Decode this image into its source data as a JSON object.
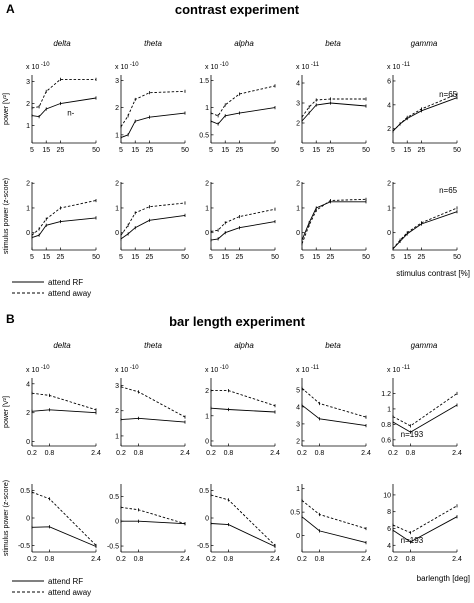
{
  "panels": [
    {
      "letter": "A",
      "title": "contrast experiment",
      "band_labels": [
        "delta",
        "theta",
        "alpha",
        "beta",
        "gamma"
      ],
      "legend": {
        "solid": "attend RF",
        "dashed": "attend away"
      },
      "xlabel": "stimulus contrast [%]"
    },
    {
      "letter": "B",
      "title": "bar length experiment",
      "band_labels": [
        "delta",
        "theta",
        "alpha",
        "beta",
        "gamma"
      ],
      "legend": {
        "solid": "attend RF",
        "dashed": "attend away"
      },
      "xlabel": "barlength [deg]"
    }
  ],
  "chart_data": [
    {
      "type": "line",
      "panel": "A",
      "row": "power",
      "band": "delta",
      "ylabel": "power [V²]",
      "exponent_label": "x 10",
      "exponent": "-10",
      "x": [
        5,
        10,
        15,
        25,
        50
      ],
      "xticks": [
        "5",
        "15",
        "25",
        "50"
      ],
      "xlim": [
        5,
        50
      ],
      "yticks": [
        "1",
        "2",
        "3"
      ],
      "ylim": [
        0.2,
        3.3
      ],
      "series": [
        {
          "name": "attend RF",
          "style": "solid",
          "values": [
            1.45,
            1.4,
            1.75,
            2.0,
            2.25
          ]
        },
        {
          "name": "attend away",
          "style": "dashed",
          "values": [
            1.8,
            1.85,
            2.55,
            3.1,
            3.1
          ]
        }
      ],
      "annotation": "n-"
    },
    {
      "type": "line",
      "panel": "A",
      "row": "power",
      "band": "theta",
      "exponent_label": "x 10",
      "exponent": "-10",
      "x": [
        5,
        10,
        15,
        25,
        50
      ],
      "xticks": [
        "5",
        "15",
        "25",
        "50"
      ],
      "xlim": [
        5,
        50
      ],
      "yticks": [
        "1",
        "2",
        "3"
      ],
      "ylim": [
        0.7,
        3.2
      ],
      "series": [
        {
          "name": "attend RF",
          "style": "solid",
          "values": [
            0.9,
            1.0,
            1.5,
            1.65,
            1.8
          ]
        },
        {
          "name": "attend away",
          "style": "dashed",
          "values": [
            1.3,
            1.7,
            2.3,
            2.55,
            2.6
          ]
        }
      ]
    },
    {
      "type": "line",
      "panel": "A",
      "row": "power",
      "band": "alpha",
      "exponent_label": "x 10",
      "exponent": "-10",
      "x": [
        5,
        10,
        15,
        25,
        50
      ],
      "xticks": [
        "5",
        "15",
        "25",
        "50"
      ],
      "xlim": [
        5,
        50
      ],
      "yticks": [
        "0.5",
        "1",
        "1.5"
      ],
      "ylim": [
        0.35,
        1.6
      ],
      "series": [
        {
          "name": "attend RF",
          "style": "solid",
          "values": [
            0.75,
            0.7,
            0.85,
            0.9,
            1.0
          ]
        },
        {
          "name": "attend away",
          "style": "dashed",
          "values": [
            0.9,
            0.85,
            1.05,
            1.25,
            1.4
          ]
        }
      ]
    },
    {
      "type": "line",
      "panel": "A",
      "row": "power",
      "band": "beta",
      "exponent_label": "x 10",
      "exponent": "-11",
      "x": [
        5,
        10,
        15,
        25,
        50
      ],
      "xticks": [
        "5",
        "15",
        "25",
        "50"
      ],
      "xlim": [
        5,
        50
      ],
      "yticks": [
        "2",
        "3",
        "4"
      ],
      "ylim": [
        1.0,
        4.4
      ],
      "series": [
        {
          "name": "attend RF",
          "style": "solid",
          "values": [
            2.1,
            2.5,
            2.9,
            3.0,
            2.85
          ]
        },
        {
          "name": "attend away",
          "style": "dashed",
          "values": [
            2.3,
            2.8,
            3.15,
            3.2,
            3.2
          ]
        }
      ]
    },
    {
      "type": "line",
      "panel": "A",
      "row": "power",
      "band": "gamma",
      "exponent_label": "x 10",
      "exponent": "-11",
      "x": [
        5,
        10,
        15,
        25,
        50
      ],
      "xticks": [
        "5",
        "15",
        "25",
        "50"
      ],
      "xlim": [
        5,
        50
      ],
      "yticks": [
        "2",
        "4",
        "6"
      ],
      "ylim": [
        0.8,
        6.5
      ],
      "series": [
        {
          "name": "attend RF",
          "style": "solid",
          "values": [
            1.8,
            2.4,
            2.85,
            3.5,
            4.6
          ]
        },
        {
          "name": "attend away",
          "style": "dashed",
          "values": [
            1.8,
            2.4,
            2.95,
            3.65,
            4.9
          ]
        }
      ],
      "annotation": "n=65"
    },
    {
      "type": "line",
      "panel": "A",
      "row": "stimulus",
      "band": "delta",
      "ylabel": "stimulus power (z-score)",
      "x": [
        5,
        10,
        15,
        25,
        50
      ],
      "xticks": [
        "5",
        "15",
        "25",
        "50"
      ],
      "xlim": [
        5,
        50
      ],
      "yticks": [
        "0",
        "1",
        "2"
      ],
      "ylim": [
        -0.7,
        2.05
      ],
      "series": [
        {
          "name": "attend RF",
          "style": "solid",
          "values": [
            -0.2,
            -0.1,
            0.3,
            0.45,
            0.6
          ]
        },
        {
          "name": "attend away",
          "style": "dashed",
          "values": [
            -0.1,
            0.15,
            0.55,
            1.0,
            1.3
          ]
        }
      ]
    },
    {
      "type": "line",
      "panel": "A",
      "row": "stimulus",
      "band": "theta",
      "x": [
        5,
        10,
        15,
        25,
        50
      ],
      "xticks": [
        "5",
        "15",
        "25",
        "50"
      ],
      "xlim": [
        5,
        50
      ],
      "yticks": [
        "0",
        "1",
        "2"
      ],
      "ylim": [
        -0.7,
        2.05
      ],
      "series": [
        {
          "name": "attend RF",
          "style": "solid",
          "values": [
            -0.25,
            -0.05,
            0.2,
            0.5,
            0.7
          ]
        },
        {
          "name": "attend away",
          "style": "dashed",
          "values": [
            -0.1,
            0.3,
            0.8,
            1.05,
            1.2
          ]
        }
      ]
    },
    {
      "type": "line",
      "panel": "A",
      "row": "stimulus",
      "band": "alpha",
      "x": [
        5,
        10,
        15,
        25,
        50
      ],
      "xticks": [
        "5",
        "15",
        "25",
        "50"
      ],
      "xlim": [
        5,
        50
      ],
      "yticks": [
        "0",
        "1",
        "2"
      ],
      "ylim": [
        -0.7,
        2.05
      ],
      "series": [
        {
          "name": "attend RF",
          "style": "solid",
          "values": [
            -0.3,
            -0.25,
            0.0,
            0.2,
            0.45
          ]
        },
        {
          "name": "attend away",
          "style": "dashed",
          "values": [
            0.05,
            0.1,
            0.4,
            0.65,
            0.95
          ]
        }
      ]
    },
    {
      "type": "line",
      "panel": "A",
      "row": "stimulus",
      "band": "beta",
      "x": [
        5,
        10,
        15,
        25,
        50
      ],
      "xticks": [
        "5",
        "15",
        "25",
        "50"
      ],
      "xlim": [
        5,
        50
      ],
      "yticks": [
        "0",
        "1",
        "2"
      ],
      "ylim": [
        -0.7,
        2.05
      ],
      "series": [
        {
          "name": "attend RF",
          "style": "solid",
          "values": [
            -0.3,
            0.4,
            1.0,
            1.25,
            1.25
          ]
        },
        {
          "name": "attend away",
          "style": "dashed",
          "values": [
            -0.45,
            0.3,
            0.9,
            1.3,
            1.35
          ]
        }
      ]
    },
    {
      "type": "line",
      "panel": "A",
      "row": "stimulus",
      "band": "gamma",
      "x": [
        5,
        10,
        15,
        25,
        50
      ],
      "xticks": [
        "5",
        "15",
        "25",
        "50"
      ],
      "xlim": [
        5,
        50
      ],
      "yticks": [
        "0",
        "1",
        "2"
      ],
      "ylim": [
        -0.7,
        2.05
      ],
      "series": [
        {
          "name": "attend RF",
          "style": "solid",
          "values": [
            -0.65,
            -0.35,
            -0.05,
            0.35,
            0.85
          ]
        },
        {
          "name": "attend away",
          "style": "dashed",
          "values": [
            -0.65,
            -0.3,
            0.0,
            0.4,
            1.0
          ]
        }
      ],
      "annotation": "n=65"
    },
    {
      "type": "line",
      "panel": "B",
      "row": "power",
      "band": "delta",
      "ylabel": "power [V²]",
      "exponent_label": "x 10",
      "exponent": "-10",
      "x": [
        0.2,
        0.8,
        2.4
      ],
      "xticks": [
        "0.2",
        "0.8",
        "2.4"
      ],
      "xlim": [
        0.2,
        2.4
      ],
      "yticks": [
        "0",
        "2",
        "4"
      ],
      "ylim": [
        -0.3,
        4.4
      ],
      "series": [
        {
          "name": "attend RF",
          "style": "solid",
          "values": [
            2.1,
            2.2,
            2.0
          ]
        },
        {
          "name": "attend away",
          "style": "dashed",
          "values": [
            3.35,
            3.2,
            2.2
          ]
        }
      ]
    },
    {
      "type": "line",
      "panel": "B",
      "row": "power",
      "band": "theta",
      "exponent_label": "x 10",
      "exponent": "-10",
      "x": [
        0.2,
        0.8,
        2.4
      ],
      "xticks": [
        "0.2",
        "0.8",
        "2.4"
      ],
      "xlim": [
        0.2,
        2.4
      ],
      "yticks": [
        "1",
        "2",
        "3"
      ],
      "ylim": [
        0.6,
        3.3
      ],
      "series": [
        {
          "name": "attend RF",
          "style": "solid",
          "values": [
            1.65,
            1.7,
            1.55
          ]
        },
        {
          "name": "attend away",
          "style": "dashed",
          "values": [
            2.95,
            2.75,
            1.75
          ]
        }
      ]
    },
    {
      "type": "line",
      "panel": "B",
      "row": "power",
      "band": "alpha",
      "exponent_label": "x 10",
      "exponent": "-10",
      "x": [
        0.2,
        0.8,
        2.4
      ],
      "xticks": [
        "0.2",
        "0.8",
        "2.4"
      ],
      "xlim": [
        0.2,
        2.4
      ],
      "yticks": [
        "0",
        "1",
        "2"
      ],
      "ylim": [
        -0.2,
        2.5
      ],
      "series": [
        {
          "name": "attend RF",
          "style": "solid",
          "values": [
            1.3,
            1.25,
            1.15
          ]
        },
        {
          "name": "attend away",
          "style": "dashed",
          "values": [
            2.0,
            2.0,
            1.4
          ]
        }
      ]
    },
    {
      "type": "line",
      "panel": "B",
      "row": "power",
      "band": "beta",
      "exponent_label": "x 10",
      "exponent": "-11",
      "x": [
        0.2,
        0.8,
        2.4
      ],
      "xticks": [
        "0.2",
        "0.8",
        "2.4"
      ],
      "xlim": [
        0.2,
        2.4
      ],
      "yticks": [
        "2",
        "3",
        "4",
        "5"
      ],
      "ylim": [
        1.7,
        5.7
      ],
      "series": [
        {
          "name": "attend RF",
          "style": "solid",
          "values": [
            4.1,
            3.3,
            2.9
          ]
        },
        {
          "name": "attend away",
          "style": "dashed",
          "values": [
            5.1,
            4.2,
            3.4
          ]
        }
      ]
    },
    {
      "type": "line",
      "panel": "B",
      "row": "power",
      "band": "gamma",
      "exponent_label": "x 10",
      "exponent": "-11",
      "x": [
        0.2,
        0.8,
        2.4
      ],
      "xticks": [
        "0.2",
        "0.8",
        "2.4"
      ],
      "xlim": [
        0.2,
        2.4
      ],
      "yticks": [
        "0.6",
        "0.8",
        "1",
        "1.2"
      ],
      "ylim": [
        0.52,
        1.4
      ],
      "series": [
        {
          "name": "attend RF",
          "style": "solid",
          "values": [
            0.83,
            0.7,
            1.05
          ]
        },
        {
          "name": "attend away",
          "style": "dashed",
          "values": [
            0.9,
            0.78,
            1.2
          ]
        }
      ],
      "annotation": "n=193"
    },
    {
      "type": "line",
      "panel": "B",
      "row": "stimulus",
      "band": "delta",
      "ylabel": "stimulus power (z-score)",
      "x": [
        0.2,
        0.8,
        2.4
      ],
      "xticks": [
        "0.2",
        "0.8",
        "2.4"
      ],
      "xlim": [
        0.2,
        2.4
      ],
      "yticks": [
        "-0.5",
        "0",
        "0.5"
      ],
      "ylim": [
        -0.62,
        0.62
      ],
      "series": [
        {
          "name": "attend RF",
          "style": "solid",
          "values": [
            -0.17,
            -0.16,
            -0.52
          ]
        },
        {
          "name": "attend away",
          "style": "dashed",
          "values": [
            0.47,
            0.35,
            -0.5
          ]
        }
      ]
    },
    {
      "type": "line",
      "panel": "B",
      "row": "stimulus",
      "band": "theta",
      "x": [
        0.2,
        0.8,
        2.4
      ],
      "xticks": [
        "0.2",
        "0.8",
        "2.4"
      ],
      "xlim": [
        0.2,
        2.4
      ],
      "yticks": [
        "-0.5",
        "0",
        "0.5"
      ],
      "ylim": [
        -0.62,
        0.75
      ],
      "series": [
        {
          "name": "attend RF",
          "style": "solid",
          "values": [
            0.0,
            0.0,
            -0.05
          ]
        },
        {
          "name": "attend away",
          "style": "dashed",
          "values": [
            0.28,
            0.23,
            -0.05
          ]
        }
      ]
    },
    {
      "type": "line",
      "panel": "B",
      "row": "stimulus",
      "band": "alpha",
      "x": [
        0.2,
        0.8,
        2.4
      ],
      "xticks": [
        "0.2",
        "0.8",
        "2.4"
      ],
      "xlim": [
        0.2,
        2.4
      ],
      "yticks": [
        "-0.5",
        "0",
        "0.5"
      ],
      "ylim": [
        -0.62,
        0.62
      ],
      "series": [
        {
          "name": "attend RF",
          "style": "solid",
          "values": [
            -0.1,
            -0.12,
            -0.52
          ]
        },
        {
          "name": "attend away",
          "style": "dashed",
          "values": [
            0.42,
            0.33,
            -0.5
          ]
        }
      ]
    },
    {
      "type": "line",
      "panel": "B",
      "row": "stimulus",
      "band": "beta",
      "x": [
        0.2,
        0.8,
        2.4
      ],
      "xticks": [
        "0.2",
        "0.8",
        "2.4"
      ],
      "xlim": [
        0.2,
        2.4
      ],
      "yticks": [
        "0",
        "0.5",
        "1"
      ],
      "ylim": [
        -0.35,
        1.1
      ],
      "series": [
        {
          "name": "attend RF",
          "style": "solid",
          "values": [
            0.4,
            0.1,
            -0.15
          ]
        },
        {
          "name": "attend away",
          "style": "dashed",
          "values": [
            0.75,
            0.45,
            0.15
          ]
        }
      ]
    },
    {
      "type": "line",
      "panel": "B",
      "row": "stimulus",
      "band": "gamma",
      "x": [
        0.2,
        0.8,
        2.4
      ],
      "xticks": [
        "0.2",
        "0.8",
        "2.4"
      ],
      "xlim": [
        0.2,
        2.4
      ],
      "yticks": [
        "4",
        "6",
        "8",
        "10"
      ],
      "ylim": [
        3.2,
        11.3
      ],
      "series": [
        {
          "name": "attend RF",
          "style": "solid",
          "values": [
            5.8,
            4.4,
            7.4
          ]
        },
        {
          "name": "attend away",
          "style": "dashed",
          "values": [
            6.4,
            5.5,
            8.7
          ]
        }
      ],
      "annotation": "n=193"
    }
  ]
}
